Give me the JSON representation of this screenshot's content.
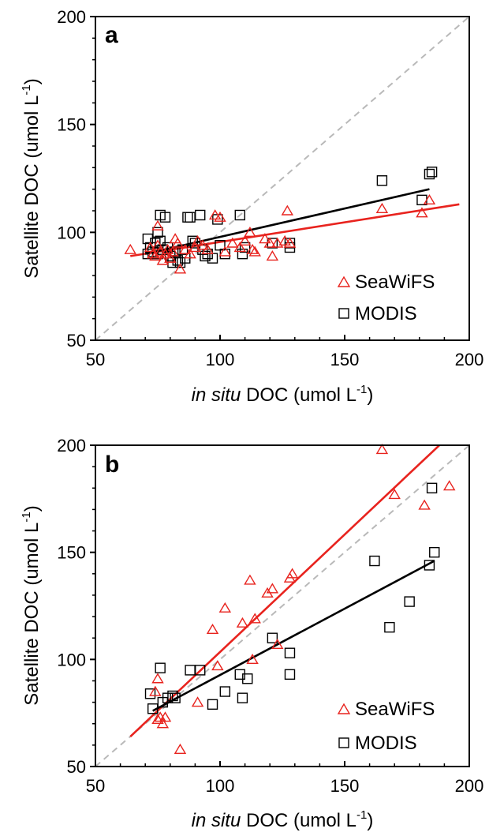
{
  "chart_data": [
    {
      "type": "scatter",
      "panel_label": "a",
      "xlabel_italic": "in situ",
      "xlabel_rest": " DOC (umol L",
      "xlabel_sup": "-1",
      "xlabel_close": ")",
      "ylabel_main": "Satellite DOC (umol L",
      "ylabel_sup": "-1",
      "ylabel_close": ")",
      "xlim": [
        50,
        200
      ],
      "ylim": [
        50,
        200
      ],
      "xticks": [
        "50",
        "100",
        "150",
        "200"
      ],
      "yticks": [
        "50",
        "100",
        "150",
        "200"
      ],
      "grid": false,
      "legend_position": "bottom-right",
      "one_to_one_line": true,
      "series": [
        {
          "name": "SeaWiFS",
          "marker": "triangle",
          "color": "#e8231e",
          "points": [
            [
              64,
              92
            ],
            [
              72,
              93
            ],
            [
              73,
              90
            ],
            [
              74,
              89
            ],
            [
              75,
              103
            ],
            [
              75,
              94
            ],
            [
              76,
              91
            ],
            [
              77,
              87
            ],
            [
              78,
              90
            ],
            [
              79,
              92
            ],
            [
              80,
              88
            ],
            [
              81,
              91
            ],
            [
              82,
              97
            ],
            [
              83,
              95
            ],
            [
              84,
              83
            ],
            [
              86,
              92
            ],
            [
              88,
              90
            ],
            [
              90,
              93
            ],
            [
              91,
              96
            ],
            [
              93,
              94
            ],
            [
              95,
              92
            ],
            [
              98,
              108
            ],
            [
              100,
              107
            ],
            [
              102,
              91
            ],
            [
              105,
              95
            ],
            [
              108,
              93
            ],
            [
              110,
              96
            ],
            [
              112,
              100
            ],
            [
              113,
              92
            ],
            [
              114,
              91
            ],
            [
              118,
              97
            ],
            [
              120,
              95
            ],
            [
              121,
              89
            ],
            [
              123,
              95
            ],
            [
              126,
              96
            ],
            [
              127,
              110
            ],
            [
              128,
              95
            ],
            [
              165,
              111
            ],
            [
              181,
              109
            ],
            [
              184,
              115
            ]
          ],
          "fit": {
            "x": [
              64,
              196
            ],
            "y": [
              89,
              113
            ]
          }
        },
        {
          "name": "MODIS",
          "marker": "square",
          "color": "#000000",
          "points": [
            [
              71,
              97
            ],
            [
              71,
              90
            ],
            [
              72,
              93
            ],
            [
              73,
              91
            ],
            [
              74,
              95
            ],
            [
              75,
              100
            ],
            [
              75,
              90
            ],
            [
              76,
              108
            ],
            [
              76,
              96
            ],
            [
              77,
              92
            ],
            [
              78,
              107
            ],
            [
              79,
              93
            ],
            [
              80,
              89
            ],
            [
              81,
              86
            ],
            [
              82,
              91
            ],
            [
              83,
              87
            ],
            [
              84,
              86
            ],
            [
              85,
              92
            ],
            [
              86,
              88
            ],
            [
              87,
              107
            ],
            [
              88,
              107
            ],
            [
              89,
              96
            ],
            [
              90,
              95
            ],
            [
              92,
              108
            ],
            [
              93,
              92
            ],
            [
              94,
              89
            ],
            [
              95,
              90
            ],
            [
              97,
              88
            ],
            [
              99,
              106
            ],
            [
              100,
              94
            ],
            [
              102,
              90
            ],
            [
              108,
              108
            ],
            [
              109,
              90
            ],
            [
              110,
              93
            ],
            [
              121,
              95
            ],
            [
              128,
              93
            ],
            [
              128,
              95
            ],
            [
              165,
              124
            ],
            [
              181,
              115
            ],
            [
              184,
              127
            ],
            [
              185,
              128
            ]
          ],
          "fit": {
            "x": [
              70,
              184
            ],
            "y": [
              90,
              120
            ]
          }
        }
      ]
    },
    {
      "type": "scatter",
      "panel_label": "b",
      "xlabel_italic": "in situ",
      "xlabel_rest": " DOC (umol L",
      "xlabel_sup": "-1",
      "xlabel_close": ")",
      "ylabel_main": "Satellite DOC (umol L",
      "ylabel_sup": "-1",
      "ylabel_close": ")",
      "xlim": [
        50,
        200
      ],
      "ylim": [
        50,
        200
      ],
      "xticks": [
        "50",
        "100",
        "150",
        "200"
      ],
      "yticks": [
        "50",
        "100",
        "150",
        "200"
      ],
      "grid": false,
      "legend_position": "bottom-right",
      "one_to_one_line": true,
      "series": [
        {
          "name": "SeaWiFS",
          "marker": "triangle",
          "color": "#e8231e",
          "points": [
            [
              74,
              85
            ],
            [
              75,
              91
            ],
            [
              75,
              72
            ],
            [
              76,
              73
            ],
            [
              77,
              70
            ],
            [
              78,
              73
            ],
            [
              84,
              58
            ],
            [
              91,
              80
            ],
            [
              97,
              114
            ],
            [
              99,
              97
            ],
            [
              102,
              124
            ],
            [
              109,
              117
            ],
            [
              112,
              137
            ],
            [
              113,
              100
            ],
            [
              114,
              119
            ],
            [
              119,
              131
            ],
            [
              121,
              133
            ],
            [
              123,
              107
            ],
            [
              128,
              138
            ],
            [
              129,
              140
            ],
            [
              165,
              198
            ],
            [
              170,
              177
            ],
            [
              182,
              172
            ],
            [
              192,
              181
            ]
          ],
          "fit": {
            "x": [
              64,
              188
            ],
            "y": [
              64,
              200
            ]
          }
        },
        {
          "name": "MODIS",
          "marker": "square",
          "color": "#000000",
          "points": [
            [
              72,
              84
            ],
            [
              73,
              77
            ],
            [
              76,
              96
            ],
            [
              77,
              80
            ],
            [
              79,
              82
            ],
            [
              81,
              83
            ],
            [
              82,
              82
            ],
            [
              88,
              95
            ],
            [
              92,
              95
            ],
            [
              97,
              79
            ],
            [
              102,
              85
            ],
            [
              108,
              93
            ],
            [
              109,
              82
            ],
            [
              111,
              91
            ],
            [
              121,
              110
            ],
            [
              128,
              103
            ],
            [
              128,
              93
            ],
            [
              162,
              146
            ],
            [
              168,
              115
            ],
            [
              176,
              127
            ],
            [
              184,
              144
            ],
            [
              185,
              180
            ],
            [
              186,
              150
            ]
          ],
          "fit": {
            "x": [
              73,
              186
            ],
            "y": [
              76,
              146
            ]
          }
        }
      ]
    }
  ]
}
